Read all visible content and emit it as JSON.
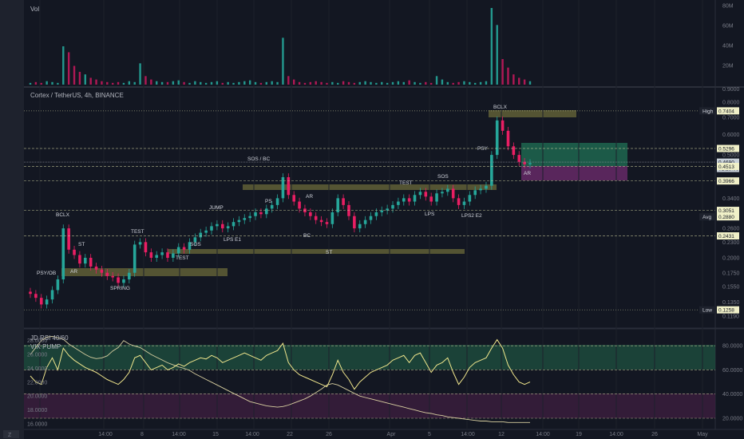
{
  "volume_panel": {
    "title": "Vol",
    "ticks": [
      "80M",
      "60M",
      "40M",
      "20M"
    ]
  },
  "price_panel": {
    "title": "Cortex / TetherUS, 4h, BINANCE",
    "ticks": [
      "0.8000",
      "0.7000",
      "0.6000",
      "0.5000",
      "0.3400",
      "0.2600",
      "0.2300",
      "0.2000",
      "0.1750",
      "0.1550",
      "0.1350",
      "0.1190"
    ],
    "price_tags": [
      {
        "label": "High",
        "value": "0.7404",
        "color": "#f0f0c8"
      },
      {
        "label": "",
        "value": "0.5296",
        "color": "#f0f0c8"
      },
      {
        "label": "",
        "value": "0.4690",
        "color": "#c8d0d8"
      },
      {
        "label": "",
        "value": "01:28:06",
        "color": "#c8d0d8"
      },
      {
        "label": "",
        "value": "0.4513",
        "color": "#f0f0c8"
      },
      {
        "label": "",
        "value": "0.3966",
        "color": "#f0f0c8"
      },
      {
        "label": "",
        "value": "0.3051",
        "color": "#f0f0c8"
      },
      {
        "label": "Avg",
        "value": "0.2880",
        "color": "#f0f0c8"
      },
      {
        "label": "",
        "value": "0.2431",
        "color": "#f0f0c8"
      },
      {
        "label": "Low",
        "value": "0.1258",
        "color": "#f0f0c8"
      }
    ],
    "annotations": [
      "PSY/OB",
      "BCLX",
      "ST",
      "AR",
      "SPRING",
      "TEST",
      "TEST",
      "SOS",
      "JUMP",
      "LPS E1",
      "SOS / BC",
      "PS",
      "AR",
      "BC",
      "ST",
      "TEST",
      "SOS",
      "LPS",
      "LPS2 E2",
      "PSY",
      "BCLX",
      "AR"
    ]
  },
  "rsi_panel": {
    "title": "JD RSI 40/60",
    "subtitle": "VIX PUMP",
    "left_ticks": [
      "28.0000",
      "26.0000",
      "24.0000",
      "22.0000",
      "20.0000",
      "18.0000",
      "16.0000"
    ],
    "right_ticks": [
      "80.0000",
      "60.0000",
      "40.0000",
      "20.0000"
    ]
  },
  "time_axis": {
    "labels": [
      "14:00",
      "8",
      "14:00",
      "15",
      "14:00",
      "22",
      "26",
      "Apr",
      "5",
      "14:00",
      "12",
      "14:00",
      "19",
      "14:00",
      "26",
      "May"
    ]
  },
  "chart_data": {
    "type": "candlestick",
    "series": [
      {
        "name": "Vol",
        "values": [
          2,
          3,
          2,
          4,
          3,
          2,
          45,
          38,
          22,
          15,
          12,
          8,
          6,
          4,
          3,
          2,
          3,
          2,
          4,
          3,
          25,
          10,
          6,
          4,
          3,
          3,
          4,
          5,
          3,
          2,
          4,
          3,
          2,
          3,
          4,
          2,
          3,
          2,
          3,
          4,
          5,
          3,
          2,
          3,
          4,
          3,
          55,
          10,
          6,
          3,
          2,
          3,
          4,
          3,
          2,
          3,
          2,
          4,
          3,
          2,
          3,
          4,
          3,
          2,
          3,
          2,
          3,
          4,
          3,
          5,
          3,
          2,
          3,
          2,
          10,
          6,
          3,
          2,
          3,
          4,
          3,
          2,
          3,
          4,
          90,
          70,
          30,
          20,
          12,
          8,
          6,
          4
        ]
      },
      {
        "name": "Close",
        "values": [
          0.145,
          0.14,
          0.132,
          0.138,
          0.15,
          0.165,
          0.26,
          0.215,
          0.205,
          0.19,
          0.2,
          0.185,
          0.18,
          0.175,
          0.17,
          0.168,
          0.16,
          0.165,
          0.175,
          0.225,
          0.23,
          0.21,
          0.2,
          0.205,
          0.21,
          0.2,
          0.208,
          0.22,
          0.215,
          0.23,
          0.24,
          0.25,
          0.255,
          0.265,
          0.27,
          0.26,
          0.265,
          0.275,
          0.28,
          0.285,
          0.29,
          0.3,
          0.295,
          0.31,
          0.32,
          0.34,
          0.41,
          0.35,
          0.33,
          0.31,
          0.3,
          0.29,
          0.28,
          0.275,
          0.27,
          0.3,
          0.34,
          0.32,
          0.29,
          0.26,
          0.27,
          0.28,
          0.29,
          0.3,
          0.305,
          0.31,
          0.32,
          0.33,
          0.34,
          0.33,
          0.35,
          0.36,
          0.345,
          0.33,
          0.355,
          0.36,
          0.37,
          0.34,
          0.32,
          0.33,
          0.35,
          0.365,
          0.37,
          0.38,
          0.5,
          0.68,
          0.62,
          0.54,
          0.5,
          0.47,
          0.46,
          0.465
        ]
      },
      {
        "name": "JD RSI 40/60",
        "values": [
          55,
          50,
          48,
          62,
          70,
          60,
          78,
          72,
          68,
          65,
          62,
          60,
          58,
          55,
          52,
          50,
          48,
          52,
          58,
          70,
          72,
          66,
          60,
          62,
          64,
          60,
          62,
          65,
          63,
          66,
          68,
          70,
          69,
          72,
          70,
          66,
          68,
          70,
          72,
          74,
          72,
          70,
          68,
          72,
          74,
          76,
          82,
          66,
          60,
          56,
          54,
          52,
          50,
          48,
          46,
          56,
          68,
          58,
          52,
          44,
          50,
          54,
          58,
          60,
          62,
          64,
          68,
          70,
          72,
          66,
          72,
          74,
          66,
          58,
          64,
          66,
          70,
          58,
          48,
          54,
          62,
          66,
          68,
          70,
          78,
          85,
          78,
          64,
          56,
          50,
          48,
          50
        ]
      },
      {
        "name": "VIX PUMP",
        "values": [
          26,
          27,
          28,
          28.5,
          28.6,
          28.4,
          28.2,
          27.5,
          27,
          26.5,
          26,
          25.6,
          25.4,
          25.5,
          25.8,
          26.5,
          27,
          28,
          27.5,
          27.2,
          27,
          26.5,
          26,
          25.6,
          25.2,
          24.8,
          24.5,
          24.2,
          24,
          23.7,
          23.2,
          22.8,
          22.4,
          22,
          21.6,
          21.2,
          20.8,
          20.4,
          20,
          19.6,
          19.2,
          19,
          18.8,
          18.6,
          18.5,
          18.4,
          18.5,
          18.7,
          19,
          19.3,
          19.6,
          20,
          20.5,
          21,
          21.6,
          21.8,
          21.6,
          21.2,
          20.8,
          20.4,
          20,
          19.8,
          19.6,
          19.4,
          19.2,
          19,
          18.8,
          18.6,
          18.4,
          18.2,
          18,
          17.8,
          17.6,
          17.5,
          17.3,
          17.2,
          17,
          16.9,
          16.8,
          16.7,
          16.6,
          16.5,
          16.4,
          16.4,
          16.3,
          16.3,
          16.3,
          16.2,
          16.2,
          16.2,
          16.2,
          16.2
        ]
      }
    ],
    "ylim_price": [
      0.119,
      0.8
    ],
    "ylim_volume": [
      0,
      90
    ],
    "ylim_rsi": [
      20,
      90
    ],
    "ylim_vix": [
      16,
      29
    ]
  }
}
